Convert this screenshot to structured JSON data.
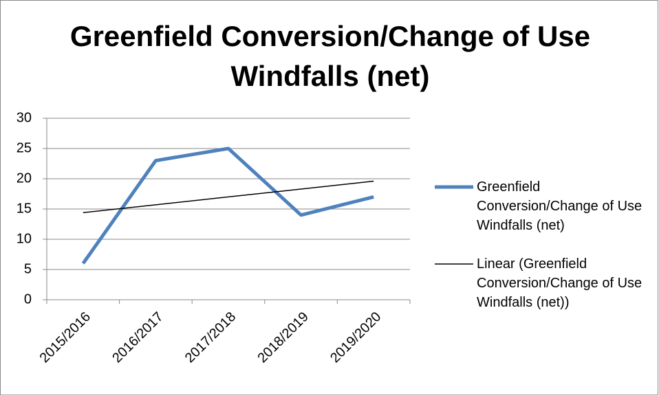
{
  "chart_data": {
    "type": "line",
    "title": "Greenfield Conversion/Change of Use Windfalls (net)",
    "categories": [
      "2015/2016",
      "2016/2017",
      "2017/2018",
      "2018/2019",
      "2019/2020"
    ],
    "series": [
      {
        "name": "Greenfield Conversion/Change of Use Windfalls (net)",
        "color": "#4f81bd",
        "values": [
          6,
          23,
          25,
          14,
          17
        ]
      },
      {
        "name": "Linear (Greenfield Conversion/Change of Use Windfalls (net))",
        "color": "#000000",
        "values": [
          14.4,
          15.7,
          17,
          18.3,
          19.6
        ]
      }
    ],
    "ylim": [
      0,
      30
    ],
    "yticks": [
      0,
      5,
      10,
      15,
      20,
      25,
      30
    ],
    "grid": true,
    "legend": "right"
  }
}
